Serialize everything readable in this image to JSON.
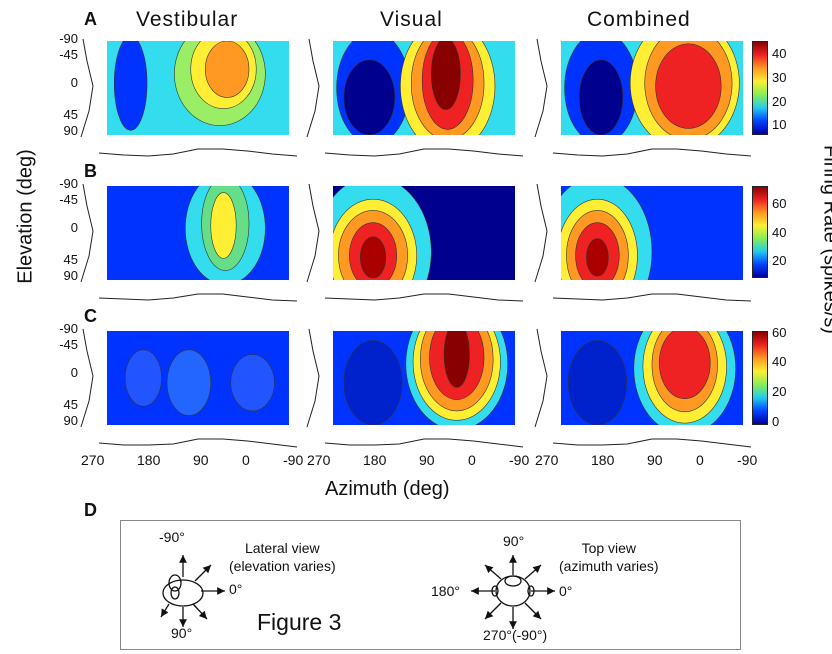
{
  "panels": [
    "A",
    "B",
    "C",
    "D"
  ],
  "columns": [
    "Vestibular",
    "Visual",
    "Combined"
  ],
  "elevation_ticks": [
    "-90",
    "-45",
    "0",
    "45",
    "90"
  ],
  "azimuth_ticks": [
    "270",
    "180",
    "90",
    "0",
    "-90"
  ],
  "y_axis_title": "Elevation (deg)",
  "x_axis_title": "Azimuth (deg)",
  "colorbar_title": "Firing Rate (spikes/s)",
  "colorbars": [
    {
      "ticks": [
        "40",
        "30",
        "20",
        "10"
      ]
    },
    {
      "ticks": [
        "60",
        "40",
        "20"
      ]
    },
    {
      "ticks": [
        "60",
        "40",
        "20",
        "0"
      ]
    }
  ],
  "colors": {
    "dark_blue": "#00008f",
    "blue": "#0033ff",
    "cyan": "#33ddee",
    "yellow": "#ffee33",
    "orange": "#ff9922",
    "red": "#ee2222",
    "dark_red": "#880000"
  },
  "diagram": {
    "lateral_label": "Lateral view\n(elevation varies)",
    "top_label": "Top view\n(azimuth varies)",
    "lat_up": "-90°",
    "lat_right": "0°",
    "lat_down": "90°",
    "top_up": "90°",
    "top_left": "180°",
    "top_right": "0°",
    "top_down": "270°(-90°)",
    "caption": "Figure 3"
  }
}
